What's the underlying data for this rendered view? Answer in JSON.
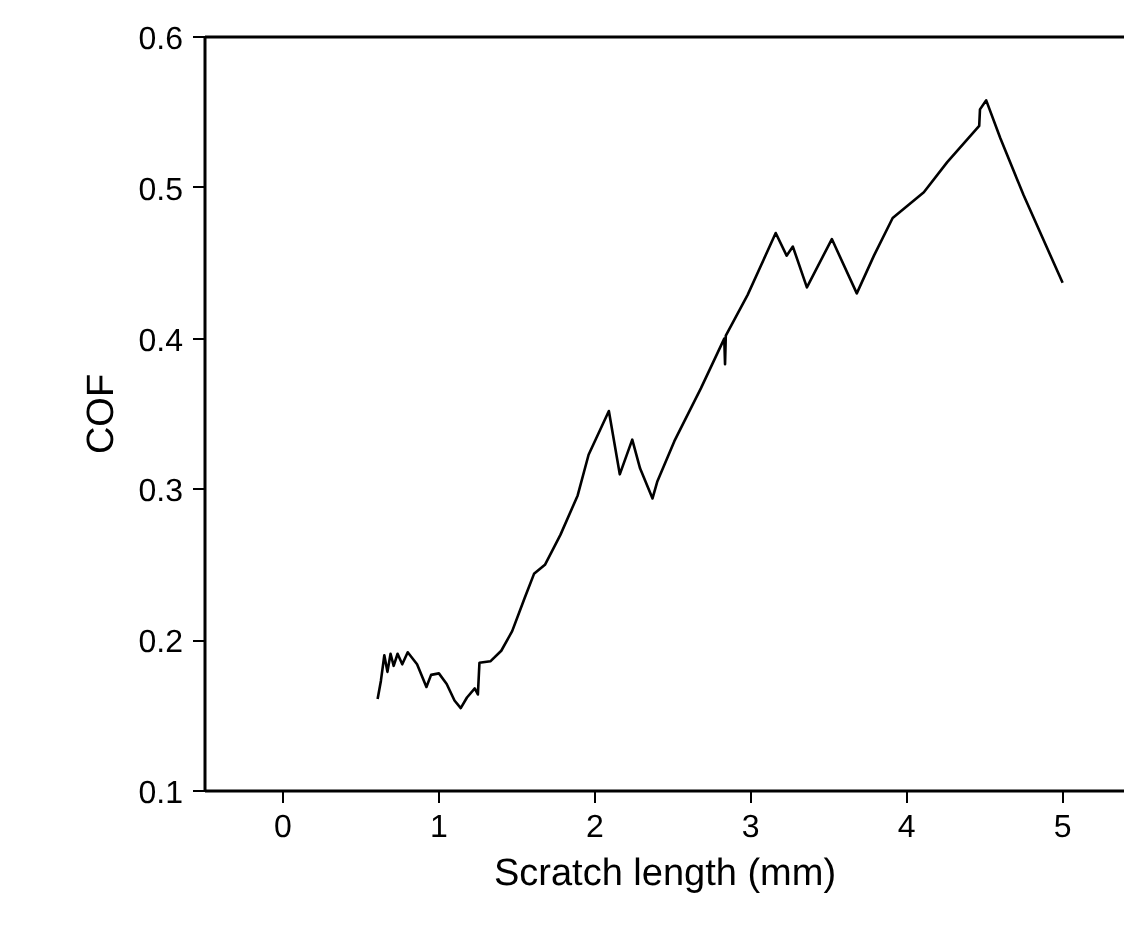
{
  "chart_data": {
    "type": "line",
    "xlabel": "Scratch length (mm)",
    "ylabel": "COF",
    "xlim": [
      -0.5,
      5.4
    ],
    "ylim": [
      0.1,
      0.6
    ],
    "xticks": [
      0,
      1,
      2,
      3,
      4,
      5
    ],
    "yticks": [
      0.1,
      0.2,
      0.3,
      0.4,
      0.5,
      0.6
    ],
    "grid": false,
    "marker": "none",
    "line_style": "solid",
    "series": [
      {
        "color": "#000000",
        "x": [
          0.607,
          0.628,
          0.65,
          0.67,
          0.69,
          0.71,
          0.735,
          0.765,
          0.8,
          0.86,
          0.92,
          0.95,
          1.0,
          1.05,
          1.1,
          1.14,
          1.18,
          1.23,
          1.25,
          1.26,
          1.33,
          1.4,
          1.47,
          1.55,
          1.61,
          1.68,
          1.78,
          1.89,
          1.96,
          2.09,
          2.16,
          2.24,
          2.29,
          2.37,
          2.4,
          2.51,
          2.68,
          2.83,
          2.835,
          2.84,
          2.98,
          3.16,
          3.23,
          3.27,
          3.36,
          3.52,
          3.68,
          3.79,
          3.91,
          4.11,
          4.26,
          4.465,
          4.47,
          4.51,
          4.6,
          4.75,
          5.0
        ],
        "values": [
          0.161,
          0.173,
          0.19,
          0.179,
          0.191,
          0.183,
          0.191,
          0.184,
          0.192,
          0.184,
          0.169,
          0.177,
          0.178,
          0.171,
          0.16,
          0.155,
          0.162,
          0.168,
          0.164,
          0.185,
          0.186,
          0.193,
          0.206,
          0.228,
          0.244,
          0.25,
          0.27,
          0.296,
          0.323,
          0.352,
          0.31,
          0.333,
          0.314,
          0.294,
          0.305,
          0.332,
          0.367,
          0.4,
          0.383,
          0.402,
          0.429,
          0.47,
          0.455,
          0.461,
          0.434,
          0.466,
          0.43,
          0.455,
          0.48,
          0.497,
          0.517,
          0.541,
          0.552,
          0.558,
          0.533,
          0.495,
          0.437
        ]
      }
    ]
  }
}
